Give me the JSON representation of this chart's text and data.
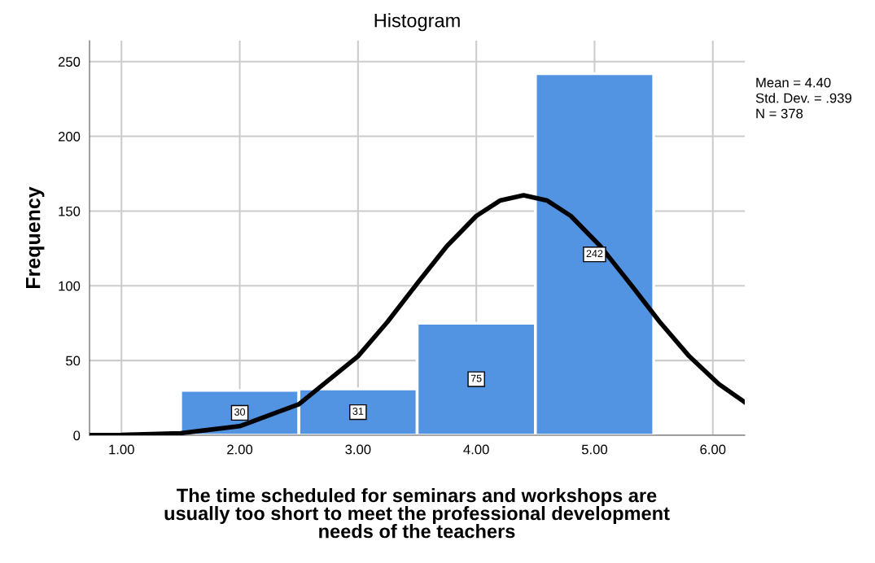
{
  "chart_data": {
    "type": "histogram",
    "title": "Histogram",
    "xlabel": "The time scheduled for seminars and workshops are\nusually too short to meet the professional development\nneeds of the teachers",
    "ylabel": "Frequency",
    "bins": [
      1.5,
      2.5,
      3.5,
      4.5,
      5.5
    ],
    "values": [
      30,
      31,
      75,
      242
    ],
    "color": "#5294e2",
    "data_labels": true,
    "series": [
      {
        "type": "line",
        "data_labels": false,
        "color": "#000000",
        "x": [
          0.75,
          1.0,
          1.5,
          2.0,
          2.5,
          3.0,
          3.25,
          3.5,
          3.75,
          4.0,
          4.2,
          4.4,
          4.6,
          4.8,
          5.05,
          5.3,
          5.55,
          5.8,
          6.05,
          6.27
        ],
        "values": [
          0.1,
          0.2,
          1.4,
          6.1,
          20.8,
          52.9,
          75.9,
          101.5,
          126.4,
          146.7,
          157.0,
          160.6,
          157.0,
          146.7,
          126.4,
          101.5,
          75.9,
          52.9,
          34.3,
          22.1
        ]
      }
    ],
    "xlim": [
      0.73,
      6.27
    ],
    "ylim": [
      0,
      264
    ],
    "xticks": [
      {
        "value": 1,
        "label": "1.00"
      },
      {
        "value": 2,
        "label": "2.00"
      },
      {
        "value": 3,
        "label": "3.00"
      },
      {
        "value": 4,
        "label": "4.00"
      },
      {
        "value": 5,
        "label": "5.00"
      },
      {
        "value": 6,
        "label": "6.00"
      }
    ],
    "yticks": [
      0,
      50,
      100,
      150,
      200,
      250
    ],
    "grid": true,
    "annotations": [
      "Mean = 4.40",
      "Std. Dev. = .939",
      "N = 378"
    ]
  }
}
